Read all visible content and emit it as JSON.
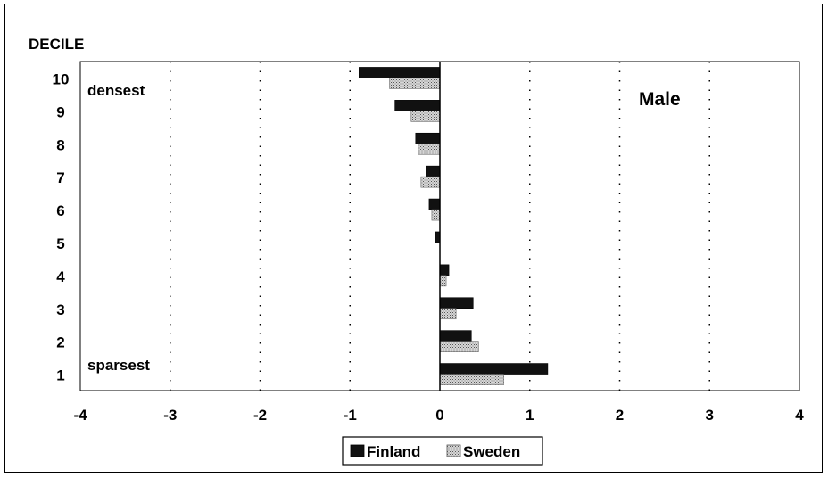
{
  "chart_data": {
    "type": "bar",
    "orientation": "horizontal",
    "title": "Male",
    "ylabel": "DECILE",
    "xlabel": "",
    "annotations": {
      "top": "densest",
      "bottom": "sparsest"
    },
    "categories": [
      "10",
      "9",
      "8",
      "7",
      "6",
      "5",
      "4",
      "3",
      "2",
      "1"
    ],
    "series": [
      {
        "name": "Finland",
        "color": "#111111",
        "values": [
          -0.9,
          -0.5,
          -0.27,
          -0.15,
          -0.12,
          -0.05,
          0.1,
          0.37,
          0.35,
          1.2
        ]
      },
      {
        "name": "Sweden",
        "color": "#b8b8b8",
        "pattern": "dotted-gray",
        "values": [
          -0.56,
          -0.32,
          -0.24,
          -0.21,
          -0.09,
          0.0,
          0.07,
          0.18,
          0.43,
          0.71
        ]
      }
    ],
    "xlim": [
      -4,
      4
    ],
    "xticks": [
      "-4",
      "-3",
      "-2",
      "-1",
      "0",
      "1",
      "2",
      "3",
      "4"
    ],
    "grid": "vertical-dotted",
    "legend": "bottom-center"
  }
}
